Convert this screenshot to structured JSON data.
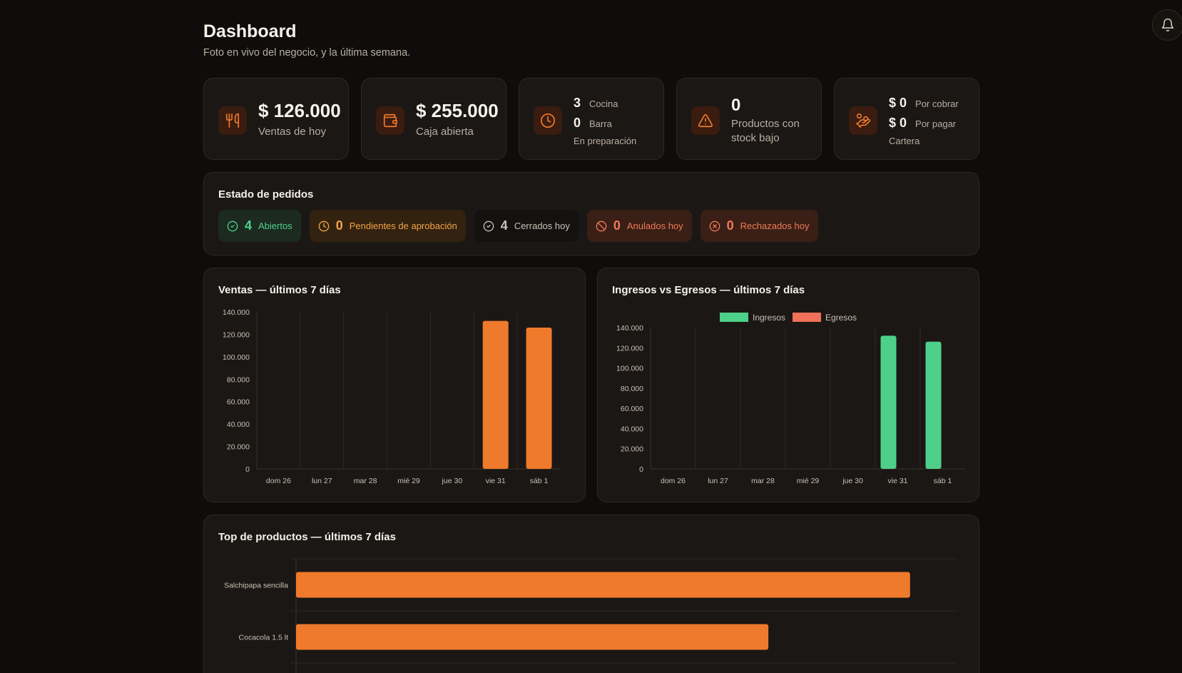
{
  "header": {
    "title": "Dashboard",
    "subtitle": "Foto en vivo del negocio, y la última semana."
  },
  "kpis": {
    "ventas": {
      "value": "$ 126.000",
      "label": "Ventas de hoy",
      "icon": "utensils-icon"
    },
    "caja": {
      "value": "$ 255.000",
      "label": "Caja abierta",
      "icon": "wallet-icon"
    },
    "preparacion": {
      "cocina_n": "3",
      "cocina_label": "Cocina",
      "barra_n": "0",
      "barra_label": "Barra",
      "label": "En preparación",
      "icon": "clock-icon"
    },
    "stock": {
      "value": "0",
      "label_line1": "Productos con",
      "label_line2": "stock bajo",
      "icon": "alert-triangle-icon"
    },
    "cartera": {
      "cobrar_n": "$ 0",
      "cobrar_label": "Por cobrar",
      "pagar_n": "$ 0",
      "pagar_label": "Por pagar",
      "label": "Cartera",
      "icon": "hand-coins-icon"
    }
  },
  "estado": {
    "title": "Estado de pedidos",
    "chips": {
      "abiertos": {
        "n": "4",
        "label": "Abiertos"
      },
      "pendientes": {
        "n": "0",
        "label": "Pendientes de aprobación"
      },
      "cerrados": {
        "n": "4",
        "label": "Cerrados hoy"
      },
      "anulados": {
        "n": "0",
        "label": "Anulados hoy"
      },
      "rechazados": {
        "n": "0",
        "label": "Rechazados hoy"
      }
    }
  },
  "colors": {
    "accent": "#f07a2c",
    "green": "#4ed08a",
    "red": "#f0705a"
  },
  "chart_data": [
    {
      "type": "bar",
      "title": "Ventas — últimos 7 días",
      "categories": [
        "dom 26",
        "lun 27",
        "mar 28",
        "mié 29",
        "jue 30",
        "vie 31",
        "sáb 1"
      ],
      "series": [
        {
          "values": [
            0,
            0,
            0,
            0,
            0,
            132000,
            126000
          ]
        }
      ],
      "ylim": [
        0,
        140000
      ],
      "yticks": [
        "140.000",
        "120.000",
        "100.000",
        "80.000",
        "60.000",
        "40.000",
        "20.000",
        "0"
      ],
      "grid": "vertical"
    },
    {
      "type": "bar",
      "title": "Ingresos vs Egresos — últimos 7 días",
      "categories": [
        "dom 26",
        "lun 27",
        "mar 28",
        "mié 29",
        "jue 30",
        "vie 31",
        "sáb 1"
      ],
      "series": [
        {
          "name": "Ingresos",
          "values": [
            0,
            0,
            0,
            0,
            0,
            132000,
            126000
          ]
        },
        {
          "name": "Egresos",
          "values": [
            0,
            0,
            0,
            0,
            0,
            0,
            0
          ]
        }
      ],
      "ylim": [
        0,
        140000
      ],
      "yticks": [
        "140.000",
        "120.000",
        "100.000",
        "80.000",
        "60.000",
        "40.000",
        "20.000",
        "0"
      ],
      "legend": "top-center"
    },
    {
      "type": "bar",
      "orientation": "horizontal",
      "title": "Top de productos — últimos 7 días",
      "categories": [
        "Salchipapa sencilla",
        "Cocacola 1.5 lt"
      ],
      "series": [
        {
          "values": [
            13,
            10
          ]
        }
      ],
      "xlim": [
        0,
        14
      ]
    }
  ]
}
